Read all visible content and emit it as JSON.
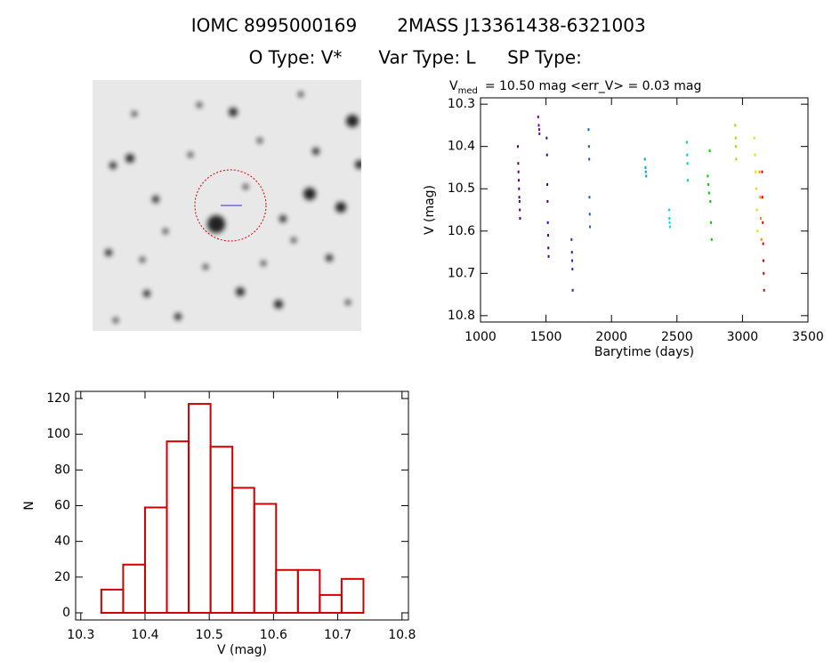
{
  "header": {
    "line1": [
      "IOMC 8995000169",
      "2MASS J13361438-6321003"
    ],
    "line2": [
      "O Type: V*",
      "Var Type: L",
      "SP Type:"
    ]
  },
  "chart_data": [
    {
      "type": "scatter",
      "title": "V",
      "title_subscript": "med",
      "title_rest": "= 10.50 mag <err_V> = 0.03 mag",
      "xlabel": "Barytime (days)",
      "ylabel": "V (mag)",
      "xlim": [
        1000,
        3500
      ],
      "xticks": [
        1000,
        1500,
        2000,
        2500,
        3000,
        3500
      ],
      "ylim": [
        10.285,
        10.815
      ],
      "y_inverted": true,
      "yticks": [
        10.3,
        10.4,
        10.5,
        10.6,
        10.7,
        10.8
      ],
      "series": [
        {
          "color": "#5a0070",
          "x": [
            1285,
            1288,
            1290,
            1292,
            1294,
            1296,
            1298,
            1300,
            1302
          ],
          "values": [
            10.4,
            10.44,
            10.46,
            10.48,
            10.5,
            10.52,
            10.53,
            10.55,
            10.57
          ]
        },
        {
          "color": "#7000a0",
          "x": [
            1440,
            1445,
            1448,
            1450
          ],
          "values": [
            10.33,
            10.35,
            10.36,
            10.37
          ]
        },
        {
          "color": "#4000b0",
          "x": [
            1505,
            1508,
            1510,
            1512,
            1514,
            1516,
            1518,
            1520
          ],
          "values": [
            10.38,
            10.42,
            10.49,
            10.53,
            10.58,
            10.61,
            10.64,
            10.66
          ]
        },
        {
          "color": "#3020c0",
          "x": [
            1695,
            1698,
            1700,
            1702,
            1704
          ],
          "values": [
            10.62,
            10.65,
            10.67,
            10.69,
            10.74
          ]
        },
        {
          "color": "#1060d0",
          "x": [
            1825,
            1828,
            1830,
            1832,
            1834,
            1836
          ],
          "values": [
            10.36,
            10.4,
            10.43,
            10.52,
            10.56,
            10.59
          ]
        },
        {
          "color": "#00a8d0",
          "x": [
            2255,
            2260,
            2262,
            2265
          ],
          "values": [
            10.43,
            10.45,
            10.46,
            10.47
          ]
        },
        {
          "color": "#00e0f0",
          "x": [
            2440,
            2442,
            2444,
            2446
          ],
          "values": [
            10.55,
            10.57,
            10.58,
            10.59
          ]
        },
        {
          "color": "#00d0c0",
          "x": [
            2575,
            2578,
            2580,
            2582
          ],
          "values": [
            10.39,
            10.42,
            10.44,
            10.48
          ]
        },
        {
          "color": "#00d000",
          "x": [
            2735,
            2740,
            2745,
            2750,
            2755,
            2760,
            2765
          ],
          "values": [
            10.47,
            10.49,
            10.51,
            10.41,
            10.53,
            10.58,
            10.62
          ]
        },
        {
          "color": "#a0e000",
          "x": [
            2945,
            2948,
            2950,
            2952
          ],
          "values": [
            10.35,
            10.38,
            10.4,
            10.43
          ]
        },
        {
          "color": "#e8e000",
          "x": [
            3090,
            3095,
            3100,
            3105,
            3110,
            3115
          ],
          "values": [
            10.38,
            10.42,
            10.46,
            10.5,
            10.55,
            10.6
          ]
        },
        {
          "color": "#ff9000",
          "x": [
            3130,
            3135,
            3140,
            3145
          ],
          "values": [
            10.46,
            10.52,
            10.57,
            10.62
          ]
        },
        {
          "color": "#e00000",
          "x": [
            3150,
            3152,
            3155,
            3158,
            3160,
            3162,
            3165
          ],
          "values": [
            10.46,
            10.52,
            10.58,
            10.63,
            10.67,
            10.7,
            10.74
          ]
        }
      ]
    },
    {
      "type": "histogram",
      "xlabel": "V (mag)",
      "ylabel": "N",
      "color": "#d00000",
      "bins": [
        10.332,
        10.366,
        10.4,
        10.434,
        10.468,
        10.502,
        10.536,
        10.57,
        10.604,
        10.638,
        10.672,
        10.706,
        10.74
      ],
      "values": [
        13,
        27,
        59,
        96,
        117,
        93,
        70,
        61,
        24,
        24,
        10,
        19
      ],
      "xlim": [
        10.292,
        10.81
      ],
      "xticks": [
        10.3,
        10.4,
        10.5,
        10.6,
        10.7,
        10.8
      ],
      "ylim": [
        -4,
        124
      ],
      "yticks": [
        0,
        20,
        40,
        60,
        80,
        100,
        120
      ]
    }
  ]
}
